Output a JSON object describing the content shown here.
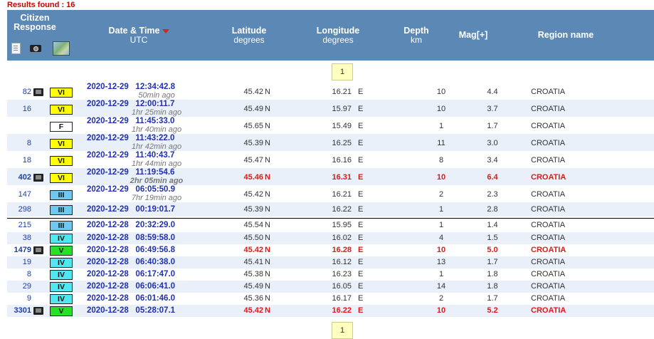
{
  "results_label": "Results found : 16",
  "columns": {
    "citizen": "Citizen Response",
    "datetime": "Date & Time",
    "datetime_sub": "UTC",
    "lat": "Latitude",
    "lat_sub": "degrees",
    "lon": "Longitude",
    "lon_sub": "degrees",
    "depth": "Depth",
    "depth_sub": "km",
    "mag": "Mag[+]",
    "region": "Region name"
  },
  "header_icons": [
    "document-icon",
    "camera-icon",
    "map-icon"
  ],
  "pager": {
    "current": "1"
  },
  "intensity_colors": {
    "VI": "#ffff00",
    "F": "#ffffff",
    "III": "#6fc8f0",
    "IV": "#4fe8f0",
    "V": "#28e028"
  },
  "rows": [
    {
      "count": "82",
      "sensor": true,
      "intensity": "VI",
      "date": "2020-12-29",
      "time": "12:34:42.8",
      "ago": "50min ago",
      "lat": "45.42",
      "ns": "N",
      "lon": "16.21",
      "ew": "E",
      "depth": "10",
      "mag": "4.4",
      "region": "CROATIA",
      "highlight": false
    },
    {
      "count": "16",
      "sensor": false,
      "intensity": "VI",
      "date": "2020-12-29",
      "time": "12:00:11.7",
      "ago": "1hr 25min ago",
      "lat": "45.49",
      "ns": "N",
      "lon": "15.97",
      "ew": "E",
      "depth": "10",
      "mag": "3.7",
      "region": "CROATIA",
      "highlight": false
    },
    {
      "count": "",
      "sensor": false,
      "intensity": "F",
      "date": "2020-12-29",
      "time": "11:45:33.0",
      "ago": "1hr 40min ago",
      "lat": "45.65",
      "ns": "N",
      "lon": "15.49",
      "ew": "E",
      "depth": "1",
      "mag": "1.7",
      "region": "CROATIA",
      "highlight": false
    },
    {
      "count": "8",
      "sensor": false,
      "intensity": "VI",
      "date": "2020-12-29",
      "time": "11:43:22.0",
      "ago": "1hr 42min ago",
      "lat": "45.39",
      "ns": "N",
      "lon": "16.25",
      "ew": "E",
      "depth": "11",
      "mag": "3.0",
      "region": "CROATIA",
      "highlight": false
    },
    {
      "count": "18",
      "sensor": false,
      "intensity": "VI",
      "date": "2020-12-29",
      "time": "11:40:43.7",
      "ago": "1hr 44min ago",
      "lat": "45.47",
      "ns": "N",
      "lon": "16.16",
      "ew": "E",
      "depth": "8",
      "mag": "3.4",
      "region": "CROATIA",
      "highlight": false
    },
    {
      "count": "402",
      "sensor": true,
      "intensity": "VI",
      "date": "2020-12-29",
      "time": "11:19:54.6",
      "ago": "2hr 05min ago",
      "lat": "45.46",
      "ns": "N",
      "lon": "16.31",
      "ew": "E",
      "depth": "10",
      "mag": "6.4",
      "region": "CROATIA",
      "highlight": true
    },
    {
      "count": "147",
      "sensor": false,
      "intensity": "III",
      "date": "2020-12-29",
      "time": "06:05:50.9",
      "ago": "7hr 19min ago",
      "lat": "45.42",
      "ns": "N",
      "lon": "16.21",
      "ew": "E",
      "depth": "2",
      "mag": "2.3",
      "region": "CROATIA",
      "highlight": false
    },
    {
      "count": "298",
      "sensor": false,
      "intensity": "III",
      "date": "2020-12-29",
      "time": "00:19:01.7",
      "ago": "",
      "lat": "45.39",
      "ns": "N",
      "lon": "16.22",
      "ew": "E",
      "depth": "1",
      "mag": "2.8",
      "region": "CROATIA",
      "highlight": false
    },
    {
      "count": "215",
      "sensor": false,
      "intensity": "III",
      "date": "2020-12-28",
      "time": "20:32:29.0",
      "ago": "",
      "lat": "45.54",
      "ns": "N",
      "lon": "15.95",
      "ew": "E",
      "depth": "1",
      "mag": "1.4",
      "region": "CROATIA",
      "highlight": false
    },
    {
      "count": "38",
      "sensor": false,
      "intensity": "IV",
      "date": "2020-12-28",
      "time": "08:59:58.0",
      "ago": "",
      "lat": "45.50",
      "ns": "N",
      "lon": "16.02",
      "ew": "E",
      "depth": "4",
      "mag": "1.5",
      "region": "CROATIA",
      "highlight": false
    },
    {
      "count": "1479",
      "sensor": true,
      "intensity": "V",
      "date": "2020-12-28",
      "time": "06:49:56.8",
      "ago": "",
      "lat": "45.42",
      "ns": "N",
      "lon": "16.28",
      "ew": "E",
      "depth": "10",
      "mag": "5.0",
      "region": "CROATIA",
      "highlight": true
    },
    {
      "count": "19",
      "sensor": false,
      "intensity": "IV",
      "date": "2020-12-28",
      "time": "06:40:38.0",
      "ago": "",
      "lat": "45.41",
      "ns": "N",
      "lon": "16.12",
      "ew": "E",
      "depth": "13",
      "mag": "1.7",
      "region": "CROATIA",
      "highlight": false
    },
    {
      "count": "8",
      "sensor": false,
      "intensity": "IV",
      "date": "2020-12-28",
      "time": "06:17:47.0",
      "ago": "",
      "lat": "45.38",
      "ns": "N",
      "lon": "16.23",
      "ew": "E",
      "depth": "1",
      "mag": "1.8",
      "region": "CROATIA",
      "highlight": false
    },
    {
      "count": "29",
      "sensor": false,
      "intensity": "IV",
      "date": "2020-12-28",
      "time": "06:06:41.0",
      "ago": "",
      "lat": "45.49",
      "ns": "N",
      "lon": "16.05",
      "ew": "E",
      "depth": "14",
      "mag": "1.8",
      "region": "CROATIA",
      "highlight": false
    },
    {
      "count": "9",
      "sensor": false,
      "intensity": "IV",
      "date": "2020-12-28",
      "time": "06:01:46.0",
      "ago": "",
      "lat": "45.36",
      "ns": "N",
      "lon": "16.17",
      "ew": "E",
      "depth": "2",
      "mag": "1.7",
      "region": "CROATIA",
      "highlight": false
    },
    {
      "count": "3301",
      "sensor": true,
      "intensity": "V",
      "date": "2020-12-28",
      "time": "05:28:07.1",
      "ago": "",
      "lat": "45.42",
      "ns": "N",
      "lon": "16.22",
      "ew": "E",
      "depth": "10",
      "mag": "5.2",
      "region": "CROATIA",
      "highlight": true
    }
  ]
}
